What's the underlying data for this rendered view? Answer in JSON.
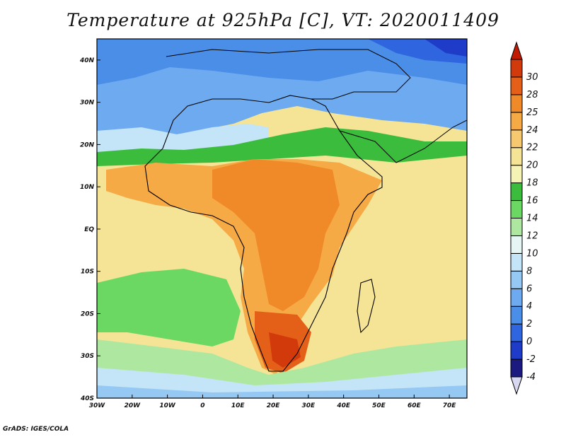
{
  "title": "Temperature at 925hPa [C], VT: 2020011409",
  "footer": "GrADS: IGES/COLA",
  "map": {
    "lat_range": [
      -40,
      45
    ],
    "lon_range": [
      -30,
      75
    ],
    "lat_ticks": [
      {
        "value": 40,
        "label": "40N"
      },
      {
        "value": 30,
        "label": "30N"
      },
      {
        "value": 20,
        "label": "20N"
      },
      {
        "value": 10,
        "label": "10N"
      },
      {
        "value": 0,
        "label": "EQ"
      },
      {
        "value": -10,
        "label": "10S"
      },
      {
        "value": -20,
        "label": "20S"
      },
      {
        "value": -30,
        "label": "30S"
      },
      {
        "value": -40,
        "label": "40S"
      }
    ],
    "lon_ticks": [
      {
        "value": -30,
        "label": "30W"
      },
      {
        "value": -20,
        "label": "20W"
      },
      {
        "value": -10,
        "label": "10W"
      },
      {
        "value": 0,
        "label": "0"
      },
      {
        "value": 10,
        "label": "10E"
      },
      {
        "value": 20,
        "label": "20E"
      },
      {
        "value": 30,
        "label": "30E"
      },
      {
        "value": 40,
        "label": "40E"
      },
      {
        "value": 50,
        "label": "50E"
      },
      {
        "value": 60,
        "label": "60E"
      },
      {
        "value": 70,
        "label": "70E"
      }
    ]
  },
  "colorbar": {
    "colors": [
      "#d8d8f0",
      "#1a1a80",
      "#1e3cc8",
      "#2f66e0",
      "#4a8ee8",
      "#6eaaf0",
      "#96c8f4",
      "#c4e4f8",
      "#e6f6f4",
      "#aee8a0",
      "#6cd864",
      "#3cbc3c",
      "#f6f4b4",
      "#f6e496",
      "#f6c870",
      "#f6aa46",
      "#f08a28",
      "#e46018",
      "#d23a0c",
      "#c01a00"
    ],
    "labels": [
      "-4",
      "-2",
      "0",
      "2",
      "4",
      "6",
      "8",
      "10",
      "12",
      "14",
      "16",
      "18",
      "20",
      "22",
      "24",
      "25",
      "28",
      "30"
    ]
  }
}
